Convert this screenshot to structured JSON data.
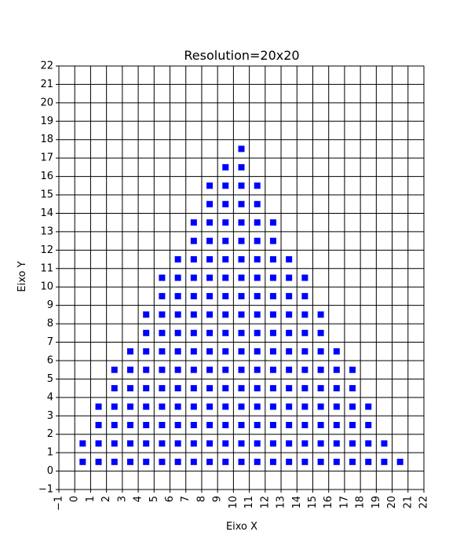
{
  "chart_data": {
    "type": "scatter",
    "title": "Resolution=20x20",
    "xlabel": "Eixo X",
    "ylabel": "Eixo Y",
    "xlim": [
      -1,
      22
    ],
    "ylim": [
      -1,
      22
    ],
    "xticks": [
      -1,
      0,
      1,
      2,
      3,
      4,
      5,
      6,
      7,
      8,
      9,
      10,
      11,
      12,
      13,
      14,
      15,
      16,
      17,
      18,
      19,
      20,
      21,
      22
    ],
    "yticks": [
      -1,
      0,
      1,
      2,
      3,
      4,
      5,
      6,
      7,
      8,
      9,
      10,
      11,
      12,
      13,
      14,
      15,
      16,
      17,
      18,
      19,
      20,
      21,
      22
    ],
    "grid": true,
    "marker": "square",
    "marker_color": "#0000ff",
    "columns": [
      {
        "x": 0.5,
        "y_max": 1.5
      },
      {
        "x": 1.5,
        "y_max": 3.5
      },
      {
        "x": 2.5,
        "y_max": 5.5
      },
      {
        "x": 3.5,
        "y_max": 6.5
      },
      {
        "x": 4.5,
        "y_max": 8.5
      },
      {
        "x": 5.5,
        "y_max": 10.5
      },
      {
        "x": 6.5,
        "y_max": 11.5
      },
      {
        "x": 7.5,
        "y_max": 13.5
      },
      {
        "x": 8.5,
        "y_max": 15.5
      },
      {
        "x": 9.5,
        "y_max": 16.5
      },
      {
        "x": 10.5,
        "y_max": 17.5
      },
      {
        "x": 11.5,
        "y_max": 15.5
      },
      {
        "x": 12.5,
        "y_max": 13.5
      },
      {
        "x": 13.5,
        "y_max": 11.5
      },
      {
        "x": 14.5,
        "y_max": 10.5
      },
      {
        "x": 15.5,
        "y_max": 8.5
      },
      {
        "x": 16.5,
        "y_max": 6.5
      },
      {
        "x": 17.5,
        "y_max": 5.5
      },
      {
        "x": 18.5,
        "y_max": 3.5
      },
      {
        "x": 19.5,
        "y_max": 1.5
      },
      {
        "x": 20.5,
        "y_max": 0.5
      }
    ]
  }
}
